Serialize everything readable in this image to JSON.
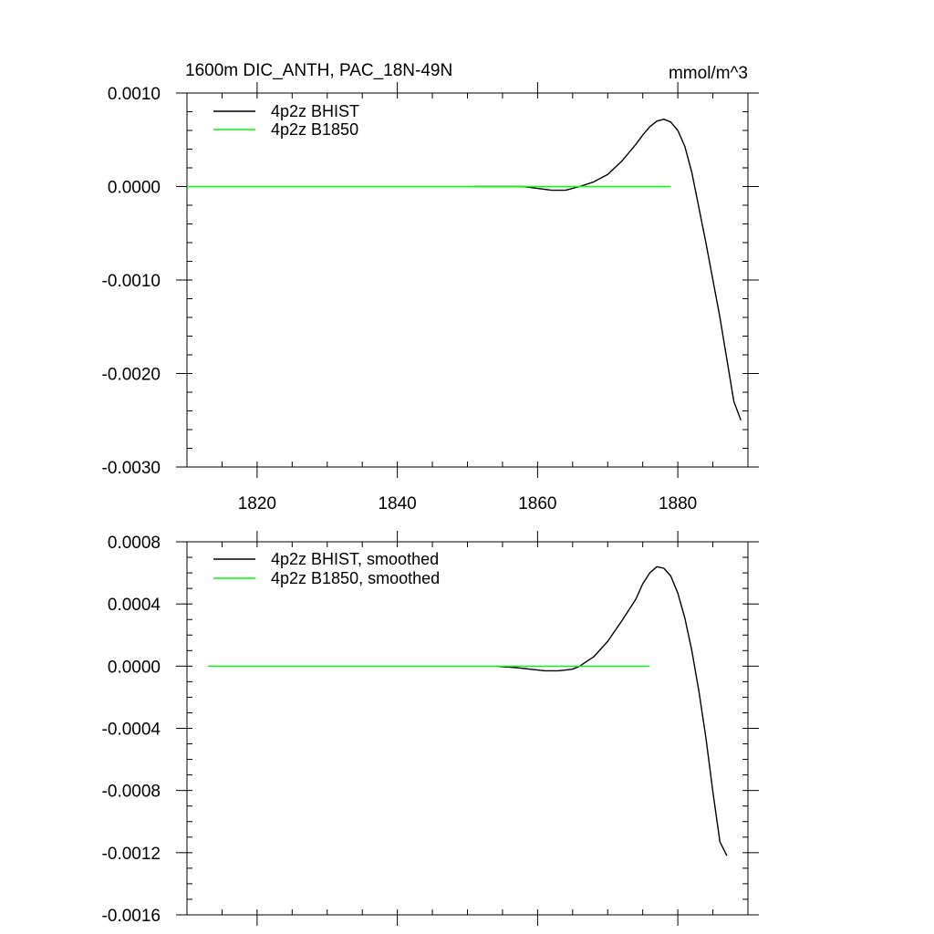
{
  "header": {
    "title": "1600m DIC_ANTH, PAC_18N-49N",
    "units": "mmol/m^3"
  },
  "chart_data": [
    {
      "type": "line",
      "xlim": [
        1810,
        1890
      ],
      "ylim": [
        -0.003,
        0.001
      ],
      "x_ticks": [
        1820,
        1840,
        1860,
        1880
      ],
      "x_tick_labels": [
        "1820",
        "1840",
        "1860",
        "1880"
      ],
      "x_minor_step": 5,
      "y_ticks": [
        -0.003,
        -0.002,
        -0.001,
        0.0,
        0.001
      ],
      "y_tick_labels": [
        "-0.0030",
        "-0.0020",
        "-0.0010",
        "0.0000",
        "0.0010"
      ],
      "y_minor_step": 0.0002,
      "legend_position": "top-left",
      "series": [
        {
          "name": "4p2z BHIST",
          "color": "#000000",
          "x": [
            1851,
            1855,
            1858,
            1860,
            1862,
            1864,
            1866,
            1868,
            1870,
            1872,
            1874,
            1875,
            1876,
            1877,
            1878,
            1879,
            1880,
            1881,
            1882,
            1884,
            1886,
            1888,
            1889
          ],
          "y": [
            0.0,
            0.0,
            0.0,
            -2e-05,
            -4e-05,
            -4e-05,
            0.0,
            5e-05,
            0.00013,
            0.00027,
            0.00045,
            0.00055,
            0.00064,
            0.0007,
            0.00072,
            0.00069,
            0.0006,
            0.00043,
            0.00015,
            -0.0006,
            -0.0014,
            -0.0023,
            -0.0025
          ]
        },
        {
          "name": "4p2z B1850",
          "color": "#00ff00",
          "x": [
            1810,
            1820,
            1830,
            1840,
            1850,
            1860,
            1870,
            1879
          ],
          "y": [
            0.0,
            0.0,
            0.0,
            0.0,
            0.0,
            0.0,
            0.0,
            0.0
          ]
        }
      ]
    },
    {
      "type": "line",
      "xlim": [
        1810,
        1890
      ],
      "ylim": [
        -0.0016,
        0.0008
      ],
      "x_ticks": [
        1820,
        1840,
        1860,
        1880
      ],
      "x_tick_labels": [],
      "x_minor_step": 5,
      "y_ticks": [
        -0.0016,
        -0.0012,
        -0.0008,
        -0.0004,
        0.0,
        0.0004,
        0.0008
      ],
      "y_tick_labels": [
        "-0.0016",
        "-0.0012",
        "-0.0008",
        "-0.0004",
        "0.0000",
        "0.0004",
        "0.0008"
      ],
      "y_minor_step": 0.0001,
      "legend_position": "top-left",
      "series": [
        {
          "name": "4p2z BHIST, smoothed",
          "color": "#000000",
          "x": [
            1854,
            1857,
            1859,
            1861,
            1863,
            1865,
            1866,
            1868,
            1870,
            1872,
            1874,
            1875,
            1876,
            1877,
            1878,
            1879,
            1880,
            1881,
            1882,
            1883,
            1884,
            1885,
            1886,
            1887
          ],
          "y": [
            0.0,
            -1e-05,
            -2e-05,
            -3e-05,
            -3e-05,
            -2e-05,
            0.0,
            6e-05,
            0.00016,
            0.00029,
            0.00043,
            0.00053,
            0.0006,
            0.00064,
            0.00063,
            0.00058,
            0.00047,
            0.00031,
            0.0001,
            -0.00016,
            -0.00046,
            -0.00081,
            -0.00113,
            -0.00122
          ]
        },
        {
          "name": "4p2z B1850, smoothed",
          "color": "#00ff00",
          "x": [
            1813,
            1820,
            1830,
            1840,
            1850,
            1860,
            1870,
            1876
          ],
          "y": [
            0.0,
            0.0,
            0.0,
            0.0,
            0.0,
            0.0,
            0.0,
            0.0
          ]
        }
      ]
    }
  ]
}
